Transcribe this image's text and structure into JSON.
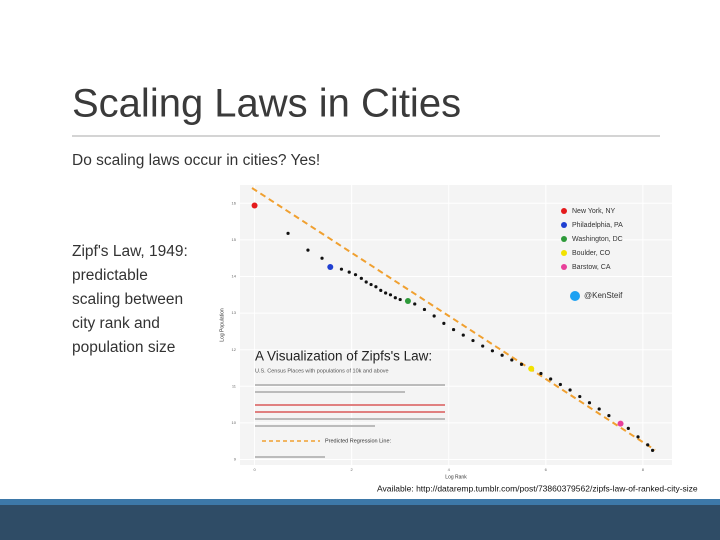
{
  "slide": {
    "title": "Scaling Laws in Cities",
    "subtitle": "Do scaling laws occur in cities? Yes!",
    "body": [
      "Zipf's Law, 1949:",
      "predictable",
      "scaling between",
      "city rank and",
      "population size"
    ],
    "source": "Available: http://dataremp.tumblr.com/post/73860379562/zipfs-law-of-ranked-city-size"
  },
  "chart_data": {
    "type": "scatter",
    "title": "A Visualization of Zipfs's Law:",
    "subtitle": "U.S. Census Places with populations of 10k and above",
    "handle": "@KenSteif",
    "regression_label": "Predicted Regression Line:",
    "xlabel": "Log Rank",
    "ylabel": "Log Population",
    "xlim": [
      -0.3,
      8.6
    ],
    "ylim": [
      8.85,
      16.5
    ],
    "xticks": [
      0,
      2,
      4,
      6,
      8
    ],
    "yticks": [
      9,
      10,
      11,
      12,
      13,
      14,
      15,
      16
    ],
    "points": {
      "color": "#111111",
      "x": [
        0.69,
        1.1,
        1.39,
        1.79,
        1.95,
        2.08,
        2.2,
        2.3,
        2.4,
        2.5,
        2.6,
        2.7,
        2.8,
        2.9,
        3.0,
        3.3,
        3.5,
        3.7,
        3.9,
        4.1,
        4.3,
        4.5,
        4.7,
        4.9,
        5.1,
        5.3,
        5.5,
        5.9,
        6.1,
        6.3,
        6.5,
        6.7,
        6.9,
        7.1,
        7.3,
        7.7,
        7.9,
        8.1,
        8.2
      ],
      "y": [
        15.18,
        14.72,
        14.5,
        14.2,
        14.12,
        14.05,
        13.95,
        13.85,
        13.78,
        13.72,
        13.62,
        13.55,
        13.5,
        13.42,
        13.37,
        13.25,
        13.1,
        12.92,
        12.72,
        12.55,
        12.4,
        12.25,
        12.1,
        11.97,
        11.85,
        11.72,
        11.6,
        11.35,
        11.2,
        11.05,
        10.9,
        10.72,
        10.55,
        10.38,
        10.2,
        9.85,
        9.62,
        9.4,
        9.25
      ]
    },
    "series": [
      {
        "name": "New York, NY",
        "color": "#e41a1c",
        "x": [
          0
        ],
        "y": [
          15.94
        ]
      },
      {
        "name": "Philadelphia, PA",
        "color": "#1f3fd1",
        "x": [
          1.56
        ],
        "y": [
          14.26
        ]
      },
      {
        "name": "Washington, DC",
        "color": "#2e9a3a",
        "x": [
          3.16
        ],
        "y": [
          13.33
        ]
      },
      {
        "name": "Boulder, CO",
        "color": "#f2e200",
        "x": [
          5.7
        ],
        "y": [
          11.48
        ]
      },
      {
        "name": "Barstow, CA",
        "color": "#e8409a",
        "x": [
          7.54
        ],
        "y": [
          9.98
        ]
      }
    ]
  }
}
